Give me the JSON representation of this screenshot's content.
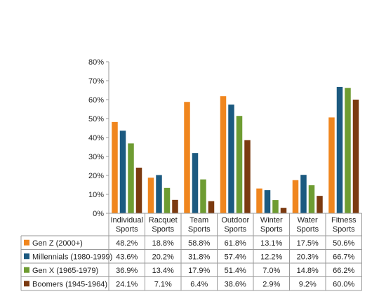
{
  "chart_data": {
    "type": "bar",
    "title": "",
    "xlabel": "",
    "ylabel": "",
    "ylim": [
      0,
      80
    ],
    "y_ticks": [
      "0%",
      "10%",
      "20%",
      "30%",
      "40%",
      "50%",
      "60%",
      "70%",
      "80%"
    ],
    "grid": false,
    "legend": "table-below",
    "categories": [
      [
        "Individual",
        "Sports"
      ],
      [
        "Racquet",
        "Sports"
      ],
      [
        "Team",
        "Sports"
      ],
      [
        "Outdoor",
        "Sports"
      ],
      [
        "Winter",
        "Sports"
      ],
      [
        "Water",
        "Sports"
      ],
      [
        "Fitness",
        "Sports"
      ]
    ],
    "series": [
      {
        "name": "Gen Z (2000+)",
        "color": "#F0861E",
        "values": [
          48.2,
          18.8,
          58.8,
          61.8,
          13.1,
          17.5,
          50.6
        ],
        "labels": [
          "48.2%",
          "18.8%",
          "58.8%",
          "61.8%",
          "13.1%",
          "17.5%",
          "50.6%"
        ]
      },
      {
        "name": "Millennials (1980-1999)",
        "color": "#1C5A80",
        "values": [
          43.6,
          20.2,
          31.8,
          57.4,
          12.2,
          20.3,
          66.7
        ],
        "labels": [
          "43.6%",
          "20.2%",
          "31.8%",
          "57.4%",
          "12.2%",
          "20.3%",
          "66.7%"
        ]
      },
      {
        "name": "Gen X (1965-1979)",
        "color": "#6E9C32",
        "values": [
          36.9,
          13.4,
          17.9,
          51.4,
          7.0,
          14.8,
          66.2
        ],
        "labels": [
          "36.9%",
          "13.4%",
          "17.9%",
          "51.4%",
          "7.0%",
          "14.8%",
          "66.2%"
        ]
      },
      {
        "name": "Boomers (1945-1964)",
        "color": "#7B3A10",
        "values": [
          24.1,
          7.1,
          6.4,
          38.6,
          2.9,
          9.2,
          60.0
        ],
        "labels": [
          "24.1%",
          "7.1%",
          "6.4%",
          "38.6%",
          "2.9%",
          "9.2%",
          "60.0%"
        ]
      }
    ]
  }
}
